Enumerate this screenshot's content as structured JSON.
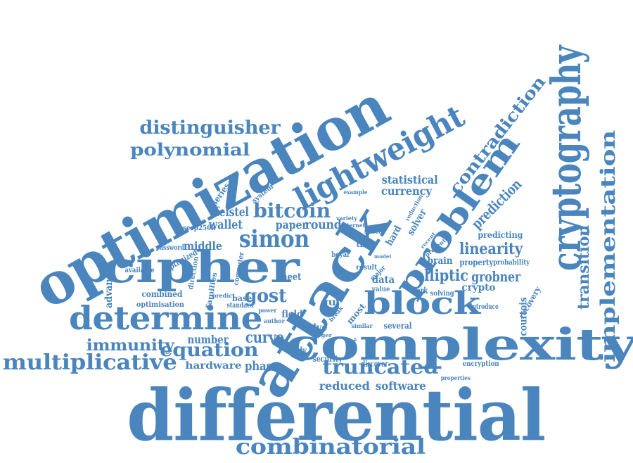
{
  "colors": {
    "word": "#4a85bd",
    "background": "#ffffff"
  },
  "words": [
    {
      "text": "differential"
    },
    {
      "text": "optimization"
    },
    {
      "text": "attack"
    },
    {
      "text": "complexity"
    },
    {
      "text": "cipher"
    },
    {
      "text": "cryptography"
    },
    {
      "text": "determine"
    },
    {
      "text": "problem"
    },
    {
      "text": "lightweight"
    },
    {
      "text": "block"
    },
    {
      "text": "multiplicative"
    },
    {
      "text": "combinatorial"
    },
    {
      "text": "implementation"
    },
    {
      "text": "truncated"
    },
    {
      "text": "contradiction"
    },
    {
      "text": "distinguisher"
    },
    {
      "text": "polynomial"
    },
    {
      "text": "simon"
    },
    {
      "text": "equation"
    },
    {
      "text": "immunity"
    },
    {
      "text": "prediction"
    },
    {
      "text": "bitcoin"
    },
    {
      "text": "linearity"
    },
    {
      "text": "transition"
    },
    {
      "text": "elliptic"
    },
    {
      "text": "grobner"
    },
    {
      "text": "gost"
    },
    {
      "text": "curve"
    },
    {
      "text": "statistical"
    },
    {
      "text": "currency"
    },
    {
      "text": "feistel"
    },
    {
      "text": "wallet"
    },
    {
      "text": "round"
    },
    {
      "text": "paper"
    },
    {
      "text": "middle"
    },
    {
      "text": "phase"
    },
    {
      "text": "reduced"
    },
    {
      "text": "software"
    },
    {
      "text": "hardware"
    },
    {
      "text": "number"
    },
    {
      "text": "courtois"
    },
    {
      "text": "crypto"
    },
    {
      "text": "predicting"
    },
    {
      "text": "brain"
    },
    {
      "text": "property"
    },
    {
      "text": "probability"
    },
    {
      "text": "recovery"
    },
    {
      "text": "advanced"
    },
    {
      "text": "combined"
    },
    {
      "text": "optimisation"
    },
    {
      "text": "base"
    },
    {
      "text": "standard"
    },
    {
      "text": "meet"
    },
    {
      "text": "data"
    },
    {
      "text": "hard"
    },
    {
      "text": "time"
    },
    {
      "text": "solver"
    },
    {
      "text": "optimized"
    },
    {
      "text": "secp256k"
    },
    {
      "text": "password"
    },
    {
      "text": "series"
    },
    {
      "text": "system"
    },
    {
      "text": "example"
    },
    {
      "text": "field"
    },
    {
      "text": "solve"
    },
    {
      "text": "study"
    },
    {
      "text": "security"
    },
    {
      "text": "discover"
    },
    {
      "text": "several"
    },
    {
      "text": "work"
    },
    {
      "text": "solving"
    },
    {
      "text": "value"
    },
    {
      "text": "introduce"
    },
    {
      "text": "encryption"
    },
    {
      "text": "properties"
    },
    {
      "text": "result"
    },
    {
      "text": "major"
    },
    {
      "text": "speed"
    },
    {
      "text": "boyar"
    },
    {
      "text": "families"
    },
    {
      "text": "direction"
    },
    {
      "text": "computer"
    },
    {
      "text": "available"
    },
    {
      "text": "most"
    },
    {
      "text": "gu"
    },
    {
      "text": "author"
    },
    {
      "text": "power"
    },
    {
      "text": "predict"
    },
    {
      "text": "variety"
    },
    {
      "text": "internet"
    },
    {
      "text": "reduction"
    },
    {
      "text": "present"
    },
    {
      "text": "similar"
    },
    {
      "text": "device"
    },
    {
      "text": "break"
    },
    {
      "text": "larger"
    },
    {
      "text": "recent"
    },
    {
      "text": "model"
    }
  ]
}
